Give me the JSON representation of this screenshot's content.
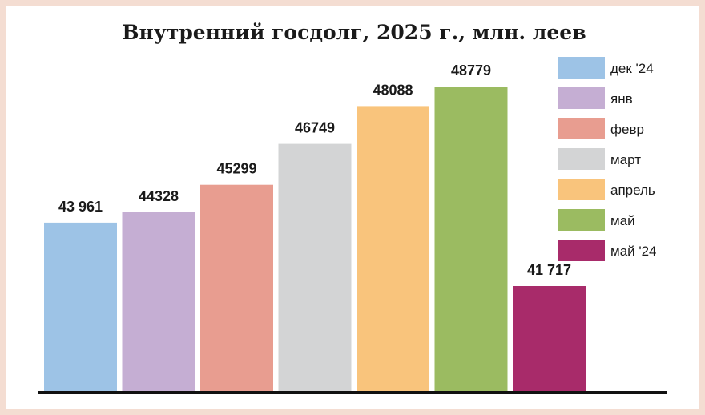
{
  "chart_data": {
    "type": "bar",
    "title": "Внутренний госдолг, 2025 г., млн. леев",
    "xlabel": "",
    "ylabel": "",
    "categories": [
      "дек '24",
      "янв",
      "февр",
      "март",
      "апрель",
      "май",
      "май '24"
    ],
    "values": [
      43961,
      44328,
      45299,
      46749,
      48088,
      48779,
      41717
    ],
    "value_labels": [
      "43 961",
      "44328",
      "45299",
      "46749",
      "48088",
      "48779",
      "41 717"
    ],
    "colors": [
      "#9dc3e6",
      "#c5aed3",
      "#e89d90",
      "#d3d4d5",
      "#f9c47c",
      "#9bbb61",
      "#a82b6a"
    ],
    "ylim": [
      38000,
      49500
    ],
    "grid": false,
    "legend_position": "right"
  }
}
